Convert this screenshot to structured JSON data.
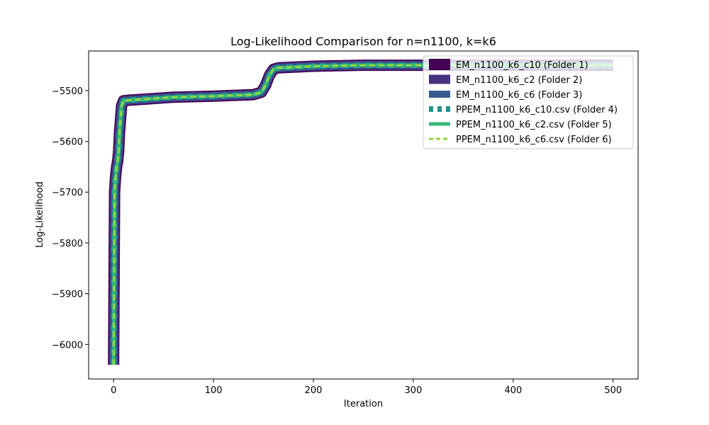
{
  "chart_data": {
    "type": "line",
    "title": "Log-Likelihood Comparison for n=n1100, k=k6",
    "xlabel": "Iteration",
    "ylabel": "Log-Likelihood",
    "xlim": [
      -25,
      525
    ],
    "ylim": [
      -6068,
      -5422
    ],
    "xticks": [
      0,
      100,
      200,
      300,
      400,
      500
    ],
    "yticks": [
      -6000,
      -5900,
      -5800,
      -5700,
      -5600,
      -5500
    ],
    "xtick_labels": [
      "0",
      "100",
      "200",
      "300",
      "400",
      "500"
    ],
    "ytick_labels": [
      "−6000",
      "−5900",
      "−5800",
      "−5700",
      "−5600",
      "−5500"
    ],
    "grid": false,
    "legend_position": "top-right",
    "x": [
      0,
      1,
      2,
      3,
      4,
      5,
      6,
      8,
      10,
      15,
      30,
      60,
      100,
      140,
      148,
      152,
      156,
      160,
      165,
      200,
      250,
      300,
      400,
      500
    ],
    "series": [
      {
        "name": "EM_n1100_k6_c10 (Folder 1)",
        "style": "thick-solid",
        "color": "#440154",
        "values": [
          -6040,
          -5700,
          -5670,
          -5650,
          -5640,
          -5620,
          -5580,
          -5530,
          -5520,
          -5519,
          -5517,
          -5513,
          -5511,
          -5508,
          -5503,
          -5490,
          -5470,
          -5458,
          -5455,
          -5452,
          -5450,
          -5450,
          -5450,
          -5450
        ]
      },
      {
        "name": "EM_n1100_k6_c2 (Folder 2)",
        "style": "solid",
        "color": "#46327e",
        "values": [
          -6040,
          -5700,
          -5670,
          -5650,
          -5640,
          -5620,
          -5580,
          -5530,
          -5520,
          -5519,
          -5517,
          -5513,
          -5511,
          -5508,
          -5503,
          -5490,
          -5470,
          -5458,
          -5455,
          -5452,
          -5450,
          -5450,
          -5450,
          -5450
        ]
      },
      {
        "name": "EM_n1100_k6_c6 (Folder 3)",
        "style": "solid",
        "color": "#365c8d",
        "values": [
          -6040,
          -5700,
          -5670,
          -5650,
          -5640,
          -5620,
          -5580,
          -5530,
          -5520,
          -5519,
          -5517,
          -5513,
          -5511,
          -5508,
          -5503,
          -5490,
          -5470,
          -5458,
          -5455,
          -5452,
          -5450,
          -5450,
          -5450,
          -5450
        ]
      },
      {
        "name": "PPEM_n1100_k6_c10.csv (Folder 4)",
        "style": "dotted",
        "color": "#21918c",
        "values": [
          -6040,
          -5700,
          -5670,
          -5650,
          -5640,
          -5620,
          -5580,
          -5530,
          -5520,
          -5519,
          -5517,
          -5513,
          -5511,
          -5508,
          -5503,
          -5490,
          -5470,
          -5458,
          -5455,
          -5452,
          -5450,
          -5450,
          -5450,
          -5450
        ]
      },
      {
        "name": "PPEM_n1100_k6_c2.csv (Folder 5)",
        "style": "solid",
        "color": "#35b779",
        "values": [
          -6040,
          -5700,
          -5670,
          -5650,
          -5640,
          -5620,
          -5580,
          -5530,
          -5520,
          -5519,
          -5517,
          -5513,
          -5511,
          -5508,
          -5503,
          -5490,
          -5470,
          -5458,
          -5455,
          -5452,
          -5450,
          -5450,
          -5450,
          -5450
        ]
      },
      {
        "name": "PPEM_n1100_k6_c6.csv (Folder 6)",
        "style": "dashed",
        "color": "#90d743",
        "values": [
          -6040,
          -5700,
          -5670,
          -5650,
          -5640,
          -5620,
          -5580,
          -5530,
          -5520,
          -5519,
          -5517,
          -5513,
          -5511,
          -5508,
          -5503,
          -5490,
          -5470,
          -5458,
          -5455,
          -5452,
          -5450,
          -5450,
          -5450,
          -5450
        ]
      }
    ]
  }
}
